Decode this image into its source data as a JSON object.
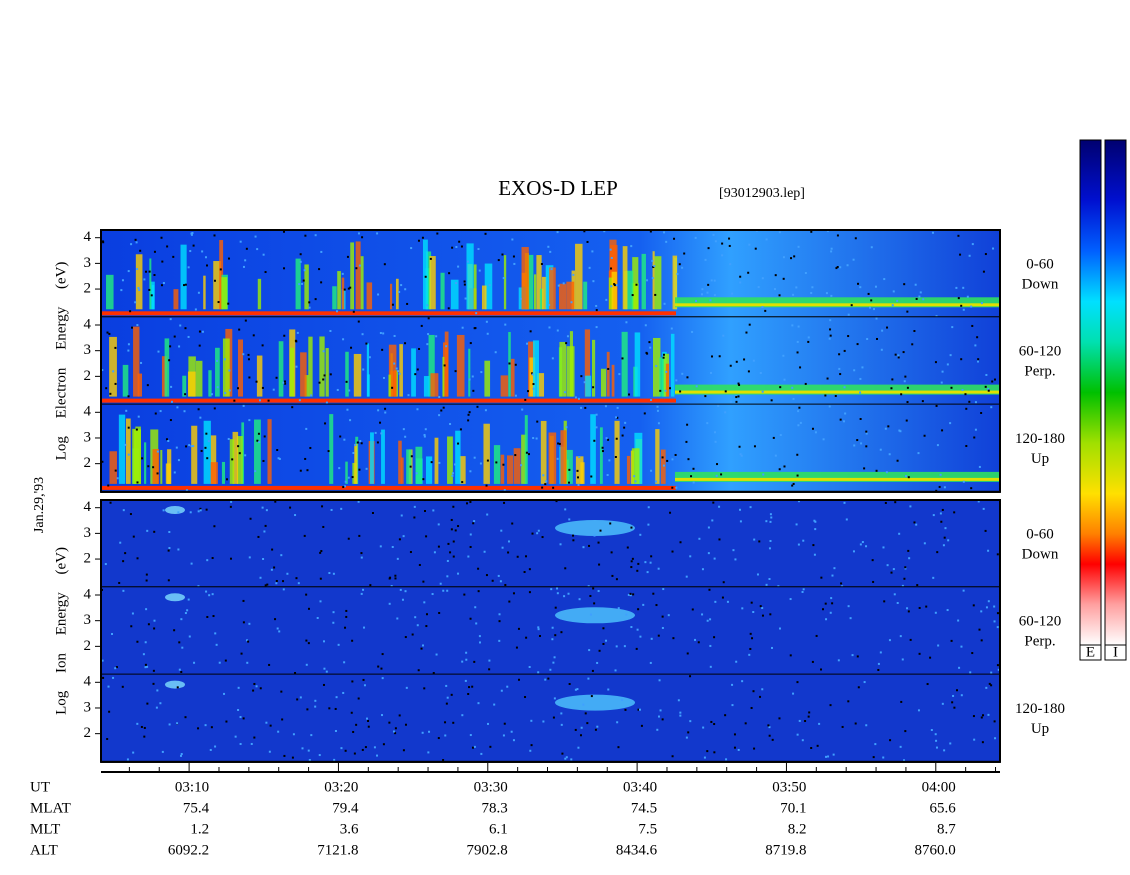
{
  "title": "EXOS-D LEP",
  "file": "[93012903.lep]",
  "date": "Jan.29,'93",
  "panel_groups": [
    {
      "ylabel": "Log Electron Energy (eV)",
      "kind": "electron",
      "panels": [
        {
          "pitch": "0-60",
          "direction": "Down"
        },
        {
          "pitch": "60-120",
          "direction": "Perp."
        },
        {
          "pitch": "120-180",
          "direction": "Up"
        }
      ]
    },
    {
      "ylabel": "Log Ion Energy (eV)",
      "kind": "ion",
      "panels": [
        {
          "pitch": "0-60",
          "direction": "Down"
        },
        {
          "pitch": "60-120",
          "direction": "Perp."
        },
        {
          "pitch": "120-180",
          "direction": "Up"
        }
      ]
    }
  ],
  "ylim": [
    0.9,
    4.3
  ],
  "yticks": [
    2,
    3,
    4
  ],
  "xlim": [
    4.1,
    64.3
  ],
  "xticks": [
    {
      "value": 10,
      "label": "03:10"
    },
    {
      "value": 20,
      "label": "03:20"
    },
    {
      "value": 30,
      "label": "03:30"
    },
    {
      "value": 40,
      "label": "03:40"
    },
    {
      "value": 50,
      "label": "03:50"
    },
    {
      "value": 60,
      "label": "04:00"
    }
  ],
  "xminorticks": [
    6,
    8,
    12,
    14,
    16,
    18,
    22,
    24,
    26,
    28,
    32,
    34,
    36,
    38,
    42,
    44,
    46,
    48,
    52,
    54,
    56,
    58,
    62,
    64
  ],
  "ephemeris": {
    "time_label": "UT",
    "rows": [
      {
        "label": "MLAT",
        "values": [
          "75.4",
          "79.4",
          "78.3",
          "74.5",
          "70.1",
          "65.6"
        ]
      },
      {
        "label": "MLT",
        "values": [
          "1.2",
          "3.6",
          "6.1",
          "7.5",
          "8.2",
          "8.7"
        ]
      },
      {
        "label": "ALT",
        "values": [
          "6092.2",
          "7121.8",
          "7902.8",
          "8434.6",
          "8719.8",
          "8760.0"
        ]
      }
    ]
  },
  "colorbars": [
    "E",
    "I"
  ]
}
